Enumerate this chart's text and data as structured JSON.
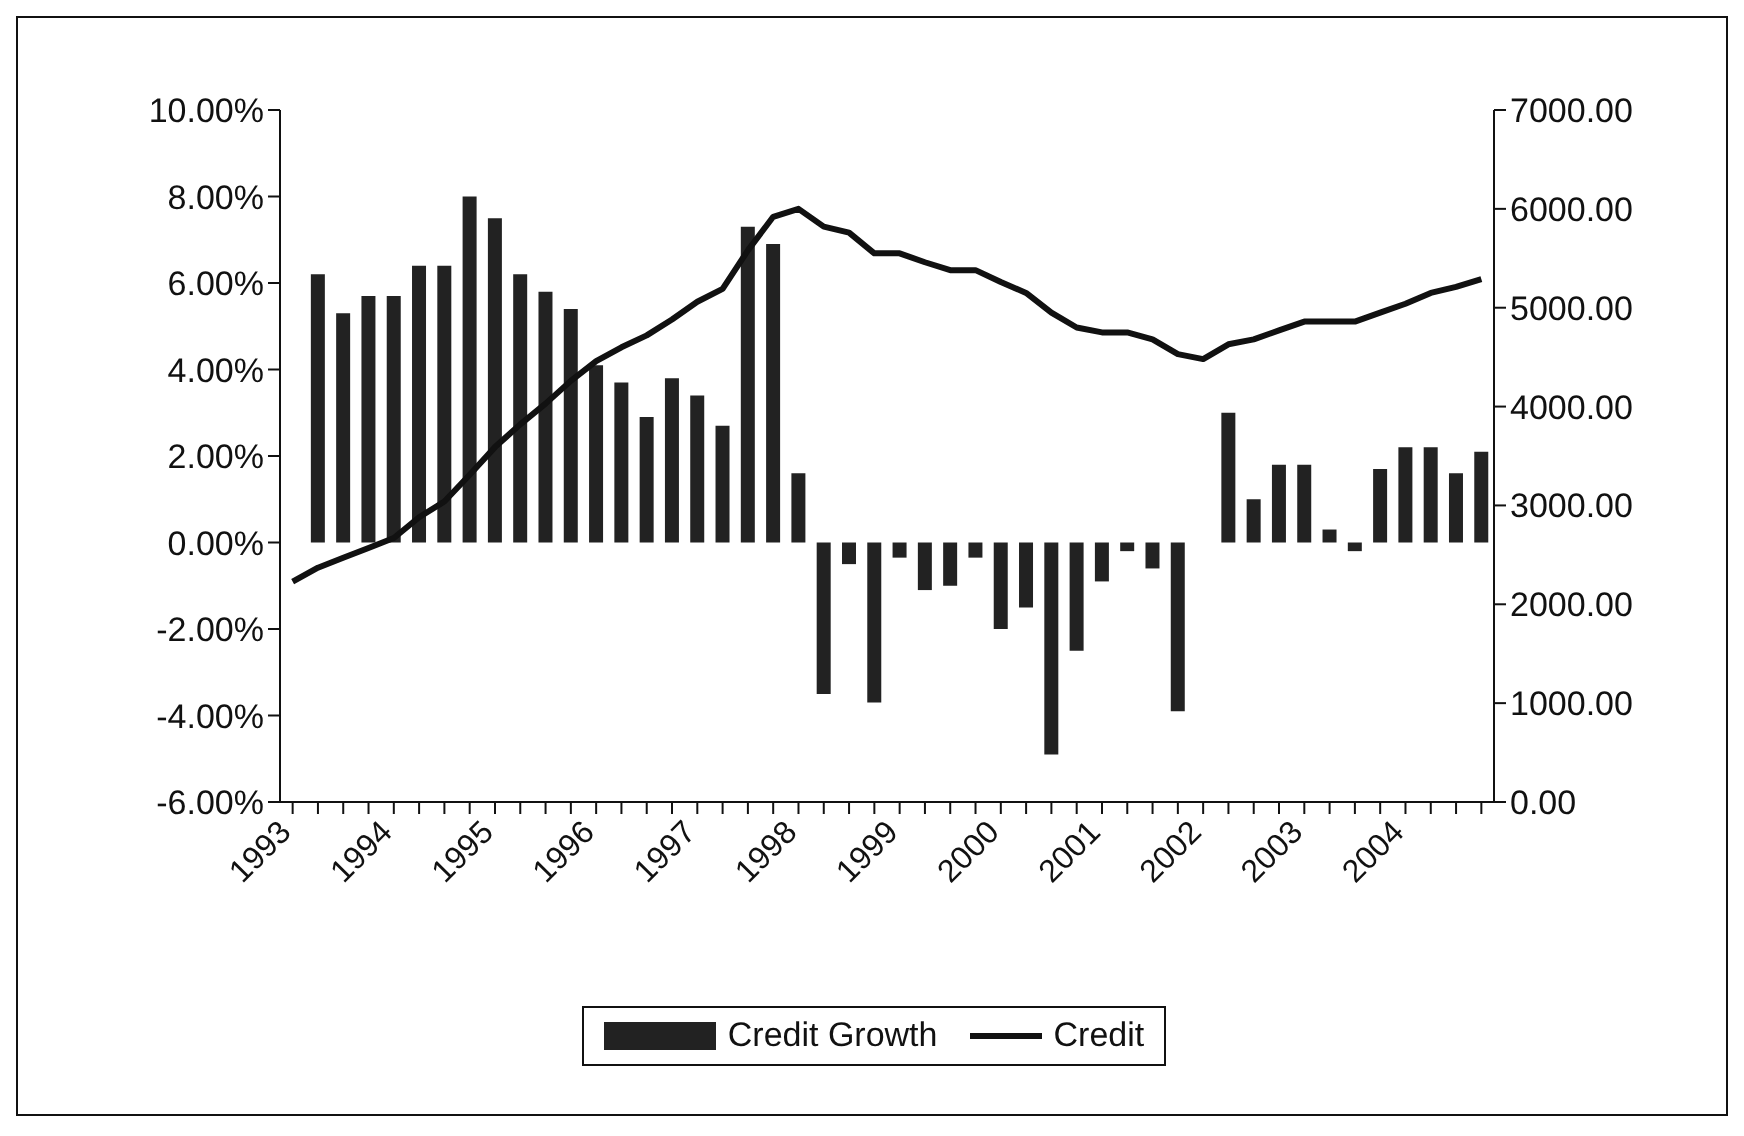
{
  "chart_data": {
    "type": "bar",
    "categories": [
      "1993",
      null,
      null,
      null,
      "1994",
      null,
      null,
      null,
      "1995",
      null,
      null,
      null,
      "1996",
      null,
      null,
      null,
      "1997",
      null,
      null,
      null,
      "1998",
      null,
      null,
      null,
      "1999",
      null,
      null,
      null,
      "2000",
      null,
      null,
      null,
      "2001",
      null,
      null,
      null,
      "2002",
      null,
      null,
      null,
      "2003",
      null,
      null,
      null,
      "2004",
      null,
      null,
      null
    ],
    "series": [
      {
        "name": "Credit Growth",
        "type": "bar",
        "color": "#222222",
        "values": [
          null,
          6.2,
          5.3,
          5.7,
          5.7,
          6.4,
          6.4,
          8.0,
          7.5,
          6.2,
          5.8,
          5.4,
          4.1,
          3.7,
          2.9,
          3.8,
          3.4,
          2.7,
          7.3,
          6.9,
          1.6,
          -3.5,
          -0.5,
          -3.7,
          -0.35,
          -1.1,
          -1.0,
          -0.35,
          -2.0,
          -1.5,
          -4.9,
          -2.5,
          -0.9,
          -0.2,
          -0.6,
          -3.9,
          null,
          3.0,
          1.0,
          1.8,
          1.8,
          0.3,
          -0.2,
          1.7,
          2.2,
          2.2,
          1.6,
          2.1
        ]
      },
      {
        "name": "Credit",
        "type": "line",
        "axis": "y2",
        "color": "#111111",
        "values": [
          2230,
          2370,
          2470,
          2570,
          2670,
          2880,
          3040,
          3310,
          3590,
          3820,
          4030,
          4260,
          4460,
          4600,
          4720,
          4880,
          5060,
          5190,
          5580,
          5920,
          6000,
          5820,
          5760,
          5550,
          5550,
          5460,
          5380,
          5380,
          5260,
          5150,
          4950,
          4800,
          4750,
          4750,
          4680,
          4530,
          4480,
          4630,
          4680,
          4770,
          4860,
          4860,
          4860,
          4950,
          5040,
          5150,
          5210,
          5290
        ]
      }
    ],
    "ylim": [
      -6,
      10
    ],
    "yticks": [
      {
        "value": -6,
        "label": "-6.00%"
      },
      {
        "value": -4,
        "label": "-4.00%"
      },
      {
        "value": -2,
        "label": "-2.00%"
      },
      {
        "value": 0,
        "label": "0.00%"
      },
      {
        "value": 2,
        "label": "2.00%"
      },
      {
        "value": 4,
        "label": "4.00%"
      },
      {
        "value": 6,
        "label": "6.00%"
      },
      {
        "value": 8,
        "label": "8.00%"
      },
      {
        "value": 10,
        "label": "10.00%"
      }
    ],
    "y2lim": [
      0,
      7000
    ],
    "y2ticks": [
      {
        "value": 0,
        "label": "0.00"
      },
      {
        "value": 1000,
        "label": "1000.00"
      },
      {
        "value": 2000,
        "label": "2000.00"
      },
      {
        "value": 3000,
        "label": "3000.00"
      },
      {
        "value": 4000,
        "label": "4000.00"
      },
      {
        "value": 5000,
        "label": "5000.00"
      },
      {
        "value": 6000,
        "label": "6000.00"
      },
      {
        "value": 7000,
        "label": "7000.00"
      }
    ],
    "legend": "bottom",
    "marker": "none",
    "line_style": "solid"
  }
}
